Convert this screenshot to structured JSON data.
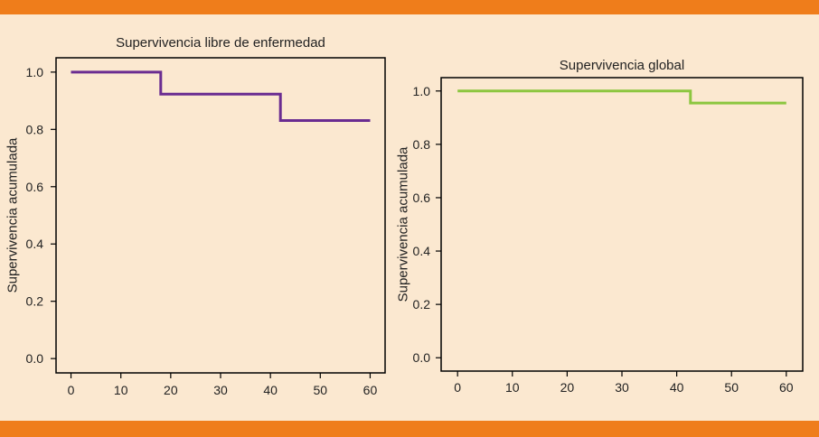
{
  "chart_data": [
    {
      "type": "line",
      "step": true,
      "title": "Supervivencia libre de enfermedad",
      "xlabel": "",
      "ylabel": "Supervivencia acumulada",
      "xlim": [
        -3,
        63
      ],
      "ylim": [
        -0.05,
        1.05
      ],
      "xticks": [
        0,
        10,
        20,
        30,
        40,
        50,
        60
      ],
      "xtick_labels": [
        "0",
        "10",
        "20",
        "30",
        "40",
        "50",
        "60"
      ],
      "yticks": [
        0.0,
        0.2,
        0.4,
        0.6,
        0.8,
        1.0
      ],
      "ytick_labels": [
        "0.0",
        "0.2",
        "0.4",
        "0.6",
        "0.8",
        "1.0"
      ],
      "grid": false,
      "series": [
        {
          "color": "#6a2c91",
          "x": [
            0,
            18,
            18,
            42,
            42,
            60
          ],
          "y": [
            1.0,
            1.0,
            0.923,
            0.923,
            0.831,
            0.831
          ]
        }
      ]
    },
    {
      "type": "line",
      "step": true,
      "title": "Supervivencia global",
      "xlabel": "",
      "ylabel": "Supervivencia acumulada",
      "xlim": [
        -3,
        63
      ],
      "ylim": [
        -0.05,
        1.05
      ],
      "xticks": [
        0,
        10,
        20,
        30,
        40,
        50,
        60
      ],
      "xtick_labels": [
        "0",
        "10",
        "20",
        "30",
        "40",
        "50",
        "60"
      ],
      "yticks": [
        0.0,
        0.2,
        0.4,
        0.6,
        0.8,
        1.0
      ],
      "ytick_labels": [
        "0.0",
        "0.2",
        "0.4",
        "0.6",
        "0.8",
        "1.0"
      ],
      "grid": false,
      "series": [
        {
          "color": "#8cc63f",
          "x": [
            0,
            42.5,
            42.5,
            60
          ],
          "y": [
            1.0,
            1.0,
            0.955,
            0.955
          ]
        }
      ]
    }
  ]
}
